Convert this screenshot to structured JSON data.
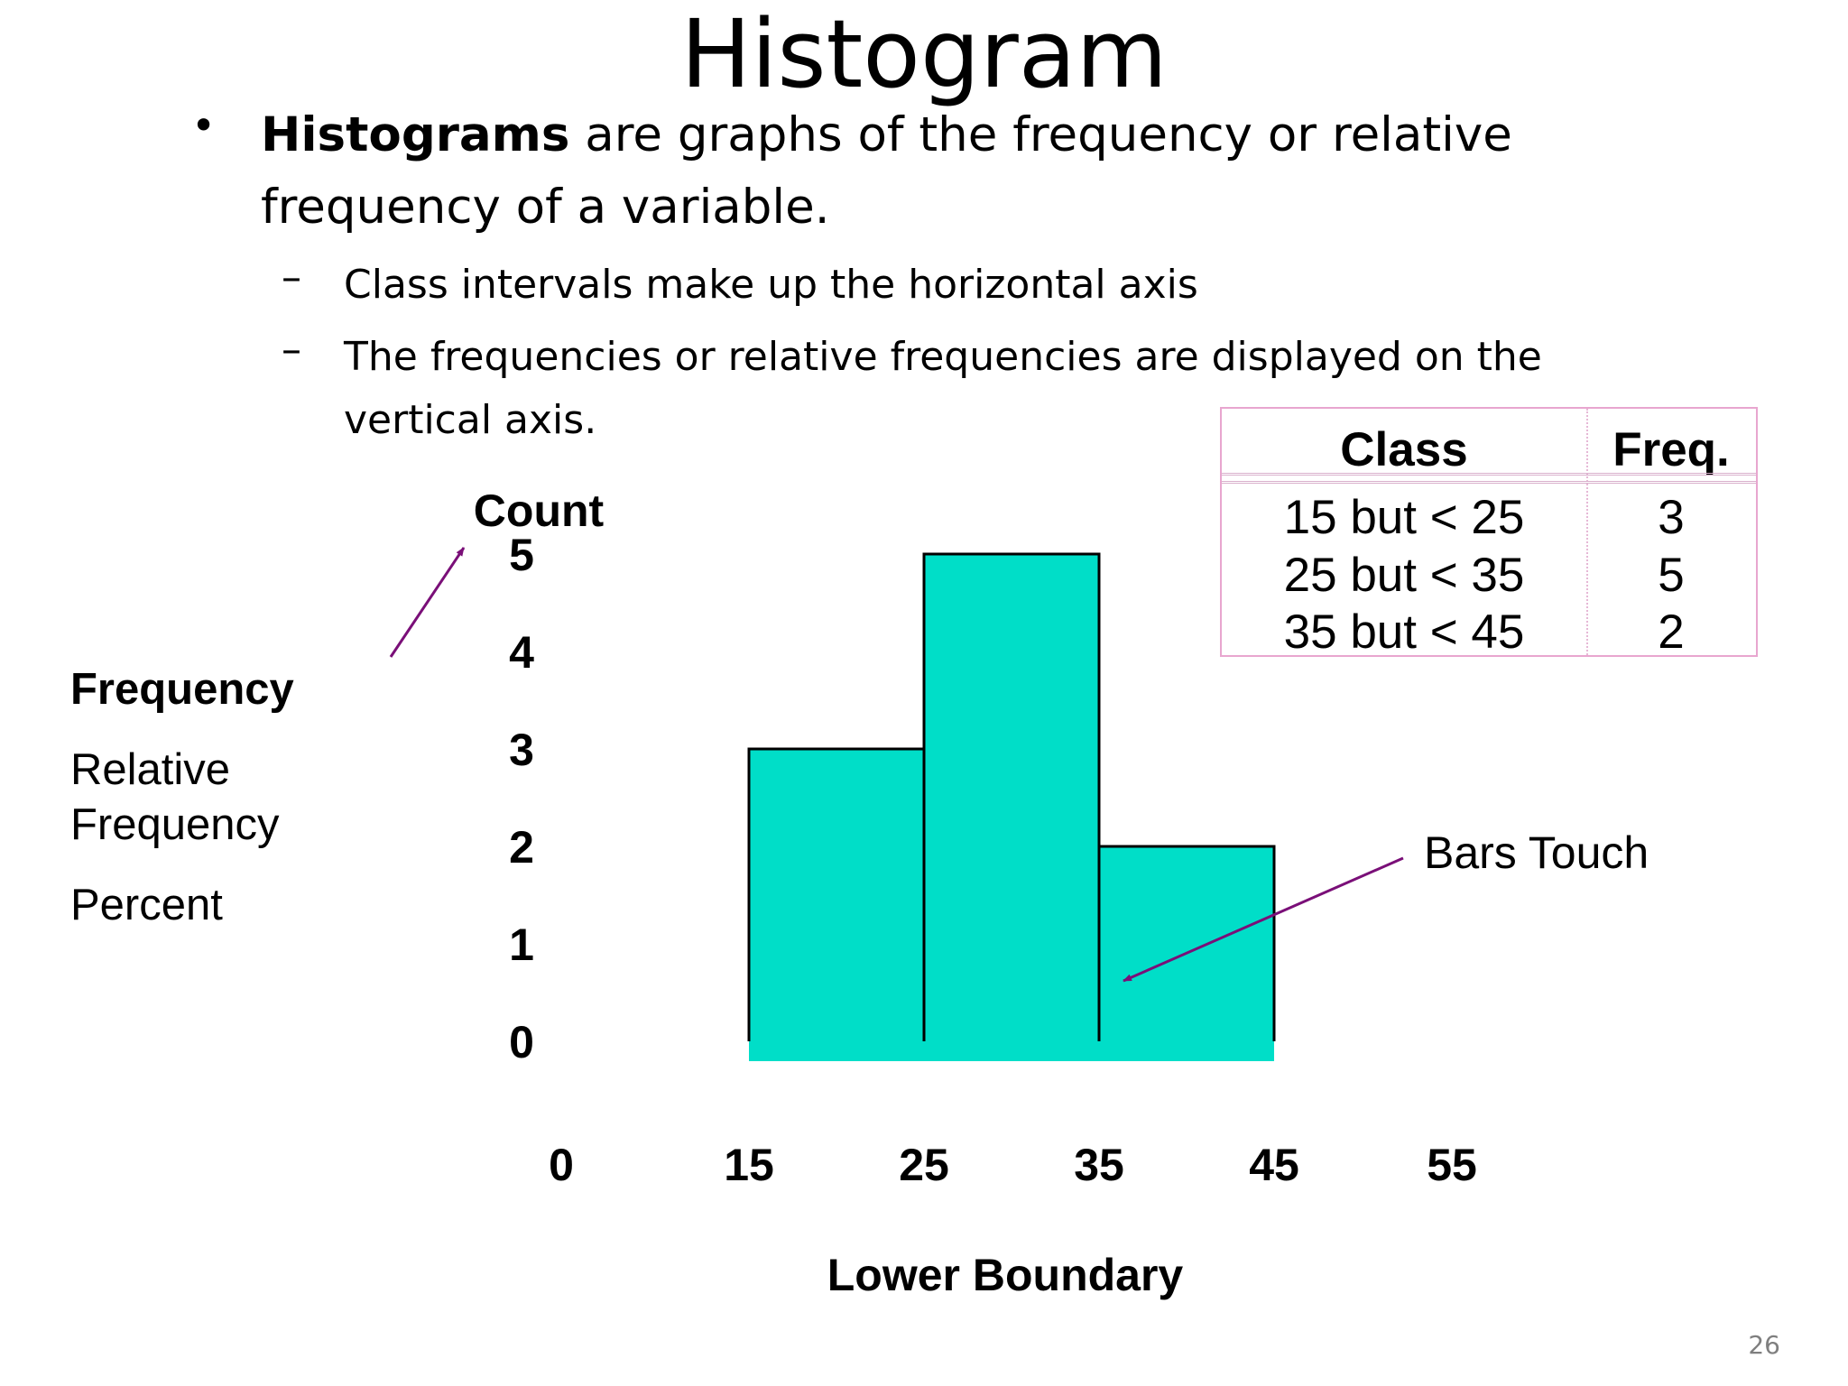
{
  "slide": {
    "title": "Histogram",
    "bullet": {
      "marker": "•",
      "bold": "Histograms",
      "text_line1": " are graphs of the frequency or relative",
      "text_line2": "frequency of a variable."
    },
    "subbullets": [
      {
        "marker": "–",
        "lines": [
          "Class intervals make up the horizontal axis"
        ]
      },
      {
        "marker": "–",
        "lines": [
          "The frequencies or relative frequencies are displayed on the",
          "vertical axis."
        ]
      }
    ],
    "page_number": "26"
  },
  "left_labels": {
    "frequency": "Frequency",
    "relative_frequency_line1": "Relative",
    "relative_frequency_line2": "Frequency",
    "percent": "Percent"
  },
  "table": {
    "headers": [
      "Class",
      "Freq."
    ],
    "rows": [
      [
        "15 but < 25",
        "3"
      ],
      [
        "25 but < 35",
        "5"
      ],
      [
        "35 but < 45",
        "2"
      ]
    ],
    "border_color": "#e8a6cf"
  },
  "annotation": {
    "bars_touch": "Bars Touch",
    "arrow_color": "#7a0f78"
  },
  "chart_data": {
    "type": "bar",
    "subtype": "histogram",
    "ylabel": "Count",
    "xlabel": "Lower Boundary",
    "y_ticks": [
      "0",
      "1",
      "2",
      "3",
      "4",
      "5"
    ],
    "ylim": [
      0,
      5
    ],
    "x_ticks": [
      "0",
      "15",
      "25",
      "35",
      "45",
      "55"
    ],
    "bins": [
      {
        "lower": 15,
        "upper": 25,
        "value": 3
      },
      {
        "lower": 25,
        "upper": 35,
        "value": 5
      },
      {
        "lower": 35,
        "upper": 45,
        "value": 2
      }
    ],
    "bar_color": "#00dec8",
    "bar_edge_color": "#000000",
    "grid": false,
    "legend": false
  }
}
